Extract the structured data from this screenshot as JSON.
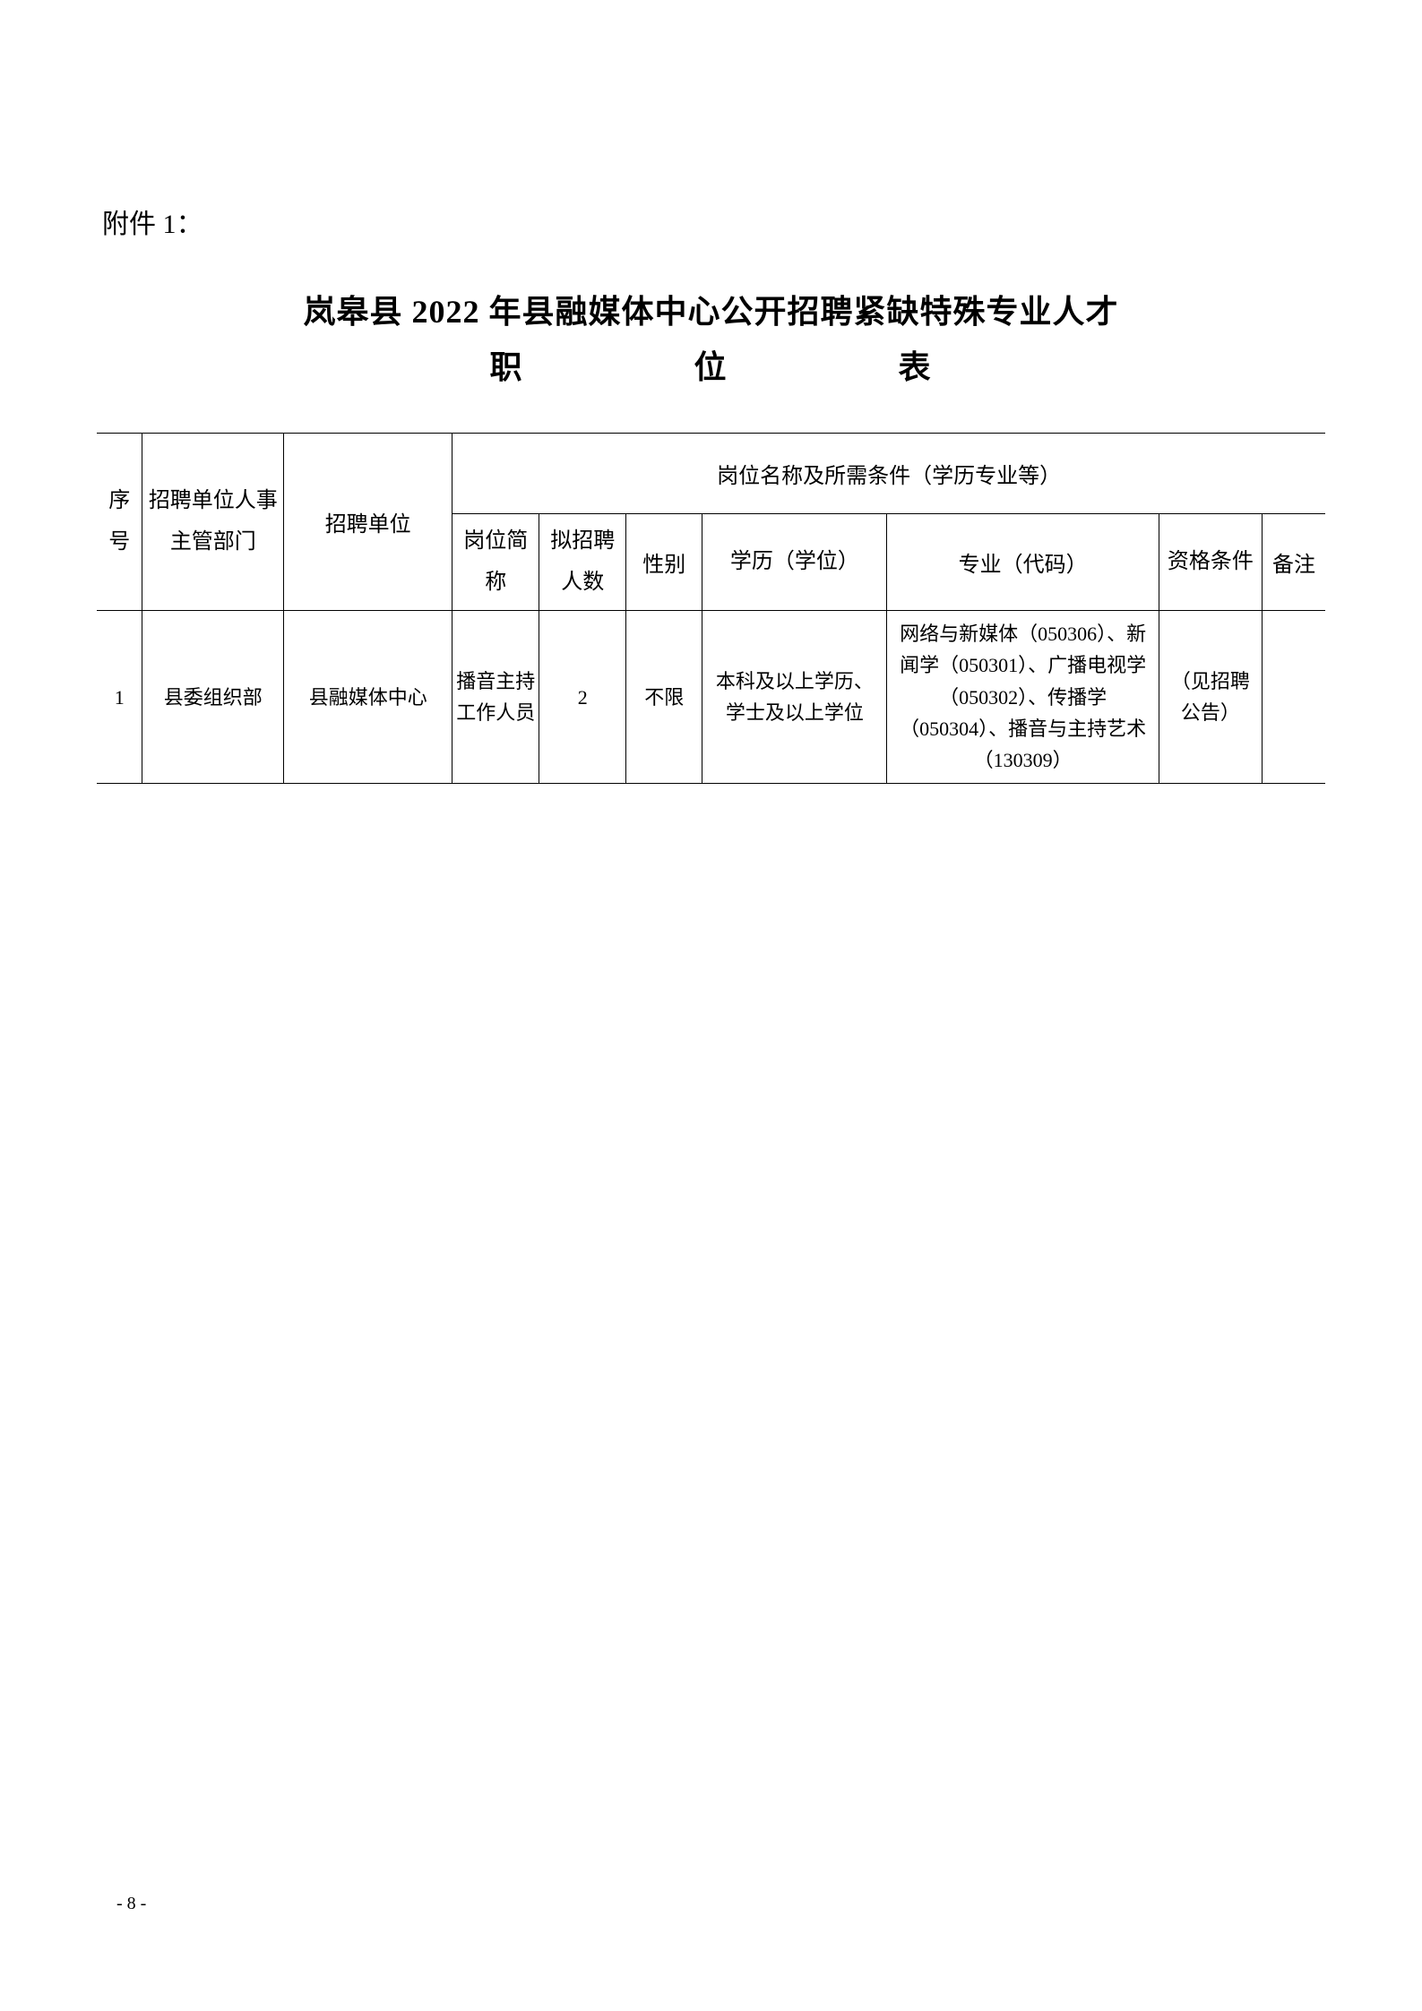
{
  "attachment_label": "附件 1：",
  "title_line1": "岚皋县 2022 年县融媒体中心公开招聘紧缺特殊专业人才",
  "title_line2_char1": "职",
  "title_line2_char2": "位",
  "title_line2_char3": "表",
  "table": {
    "header_group": "岗位名称及所需条件（学历专业等）",
    "columns": {
      "seq": "序号",
      "dept": "招聘单位人事主管部门",
      "unit": "招聘单位",
      "position": "岗位简称",
      "count": "拟招聘人数",
      "gender": "性别",
      "education": "学历（学位）",
      "major": "专业（代码）",
      "qualification": "资格条件",
      "note": "备注"
    },
    "rows": [
      {
        "seq": "1",
        "dept": "县委组织部",
        "unit": "县融媒体中心",
        "position": "播音主持工作人员",
        "count": "2",
        "gender": "不限",
        "education": "本科及以上学历、学士及以上学位",
        "major": "网络与新媒体（050306）、新闻学（050301）、广播电视学（050302）、传播学（050304）、播音与主持艺术（130309）",
        "qualification": "（见招聘公告）",
        "note": ""
      }
    ]
  },
  "page_number": "- 8 -",
  "styling": {
    "background_color": "#ffffff",
    "text_color": "#000000",
    "border_color": "#000000",
    "title_fontsize": 36,
    "body_fontsize": 24,
    "cell_fontsize": 22,
    "attachment_fontsize": 30,
    "font_family": "SimSun"
  }
}
